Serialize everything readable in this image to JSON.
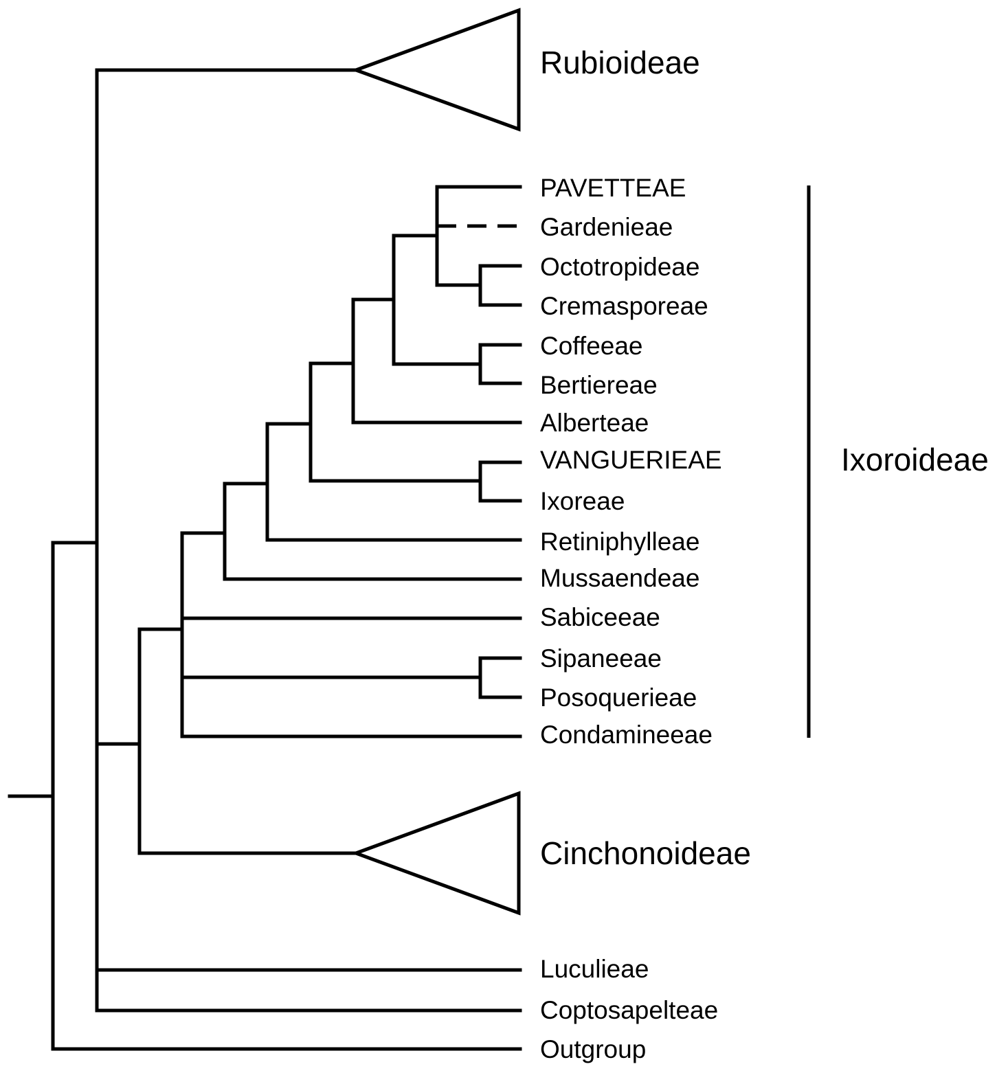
{
  "tree": {
    "collapsed_clades": [
      {
        "id": "rubioideae",
        "label": "Rubioideae"
      },
      {
        "id": "cinchonoideae",
        "label": "Cinchonoideae"
      }
    ],
    "taxa": [
      {
        "id": "pavetteae",
        "label": "PAVETTEAE"
      },
      {
        "id": "gardenieae",
        "label": "Gardenieae"
      },
      {
        "id": "octotropideae",
        "label": "Octotropideae"
      },
      {
        "id": "cremasporeae",
        "label": "Cremasporeae"
      },
      {
        "id": "coffeeae",
        "label": "Coffeeae"
      },
      {
        "id": "bertiereae",
        "label": "Bertiereae"
      },
      {
        "id": "alberteae",
        "label": "Alberteae"
      },
      {
        "id": "vanguerieae",
        "label": "VANGUERIEAE"
      },
      {
        "id": "ixoreae",
        "label": "Ixoreae"
      },
      {
        "id": "retiniphylleae",
        "label": "Retiniphylleae"
      },
      {
        "id": "mussaendeae",
        "label": "Mussaendeae"
      },
      {
        "id": "sabiceeae",
        "label": "Sabiceeae"
      },
      {
        "id": "sipaneeae",
        "label": "Sipaneeae"
      },
      {
        "id": "posoquerieae",
        "label": "Posoquerieae"
      },
      {
        "id": "condamineeae",
        "label": "Condamineeae"
      },
      {
        "id": "luculieae",
        "label": "Luculieae"
      },
      {
        "id": "coptosapelteae",
        "label": "Coptosapelteae"
      },
      {
        "id": "outgroup",
        "label": "Outgroup"
      }
    ],
    "dashed_branch": "gardenieae",
    "group_bracket": {
      "label": "Ixoroideae"
    }
  }
}
